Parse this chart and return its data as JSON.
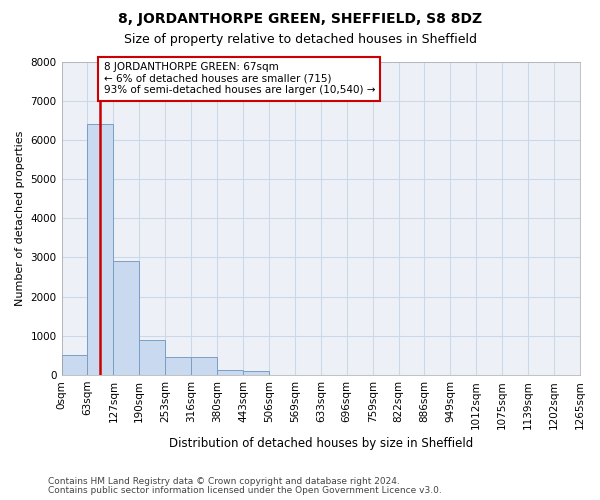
{
  "title1": "8, JORDANTHORPE GREEN, SHEFFIELD, S8 8DZ",
  "title2": "Size of property relative to detached houses in Sheffield",
  "xlabel": "Distribution of detached houses by size in Sheffield",
  "ylabel": "Number of detached properties",
  "bar_values": [
    500,
    6400,
    2900,
    900,
    450,
    450,
    130,
    110,
    0,
    0,
    0,
    0,
    0,
    0,
    0,
    0,
    0,
    0,
    0,
    0
  ],
  "bar_color": "#c9d9ef",
  "bar_edge_color": "#7a9fc4",
  "categories": [
    "0sqm",
    "63sqm",
    "127sqm",
    "190sqm",
    "253sqm",
    "316sqm",
    "380sqm",
    "443sqm",
    "506sqm",
    "569sqm",
    "633sqm",
    "696sqm",
    "759sqm",
    "822sqm",
    "886sqm",
    "949sqm",
    "1012sqm",
    "1075sqm",
    "1139sqm",
    "1202sqm",
    "1265sqm"
  ],
  "ylim": [
    0,
    8000
  ],
  "yticks": [
    0,
    1000,
    2000,
    3000,
    4000,
    5000,
    6000,
    7000,
    8000
  ],
  "property_line_x": 1.0,
  "property_line_color": "#cc0000",
  "annotation_text": "8 JORDANTHORPE GREEN: 67sqm\n← 6% of detached houses are smaller (715)\n93% of semi-detached houses are larger (10,540) →",
  "annotation_box_color": "#cc0000",
  "grid_color": "#ccd8e8",
  "background_color": "#edf1f7",
  "footer1": "Contains HM Land Registry data © Crown copyright and database right 2024.",
  "footer2": "Contains public sector information licensed under the Open Government Licence v3.0."
}
